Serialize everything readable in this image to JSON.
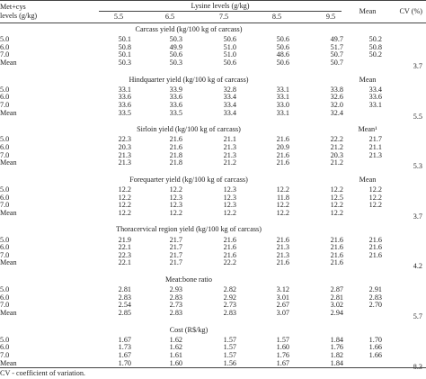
{
  "header": {
    "row_header_line1": "Met+cys",
    "row_header_line2": "levels (g/kg)",
    "lysine_header": "Lysine levels (g/kg)",
    "lysine_levels": [
      "5.5",
      "6.5",
      "7.5",
      "8.5",
      "9.5"
    ],
    "mean_label": "Mean",
    "cv_label": "CV (%)"
  },
  "sections": [
    {
      "title": "Carcass yield (kg/100 kg of carcass)",
      "mean_col_header": "",
      "rows": [
        {
          "label": "5.0",
          "values": [
            "50.1",
            "50.3",
            "50.6",
            "50.6",
            "49.7"
          ],
          "mean": "50.2",
          "cv": ""
        },
        {
          "label": "6.0",
          "values": [
            "50.8",
            "49.9",
            "51.0",
            "50.6",
            "51.7"
          ],
          "mean": "50.8",
          "cv": ""
        },
        {
          "label": "7.0",
          "values": [
            "50.1",
            "50.6",
            "51.0",
            "48.6",
            "50.7"
          ],
          "mean": "50.2",
          "cv": ""
        },
        {
          "label": "Mean",
          "values": [
            "50.3",
            "50.3",
            "50.6",
            "50.6",
            "50.7"
          ],
          "mean": "",
          "cv": "3.7"
        }
      ]
    },
    {
      "title": "Hindquarter yield (kg/100 kg of carcass)",
      "mean_col_header": "Mean",
      "rows": [
        {
          "label": "5.0",
          "values": [
            "33.1",
            "33.9",
            "32.8",
            "33.1",
            "33.8"
          ],
          "mean": "33.4",
          "cv": ""
        },
        {
          "label": "6.0",
          "values": [
            "33.6",
            "33.6",
            "33.4",
            "33.1",
            "32.6"
          ],
          "mean": "33.6",
          "cv": ""
        },
        {
          "label": "7.0",
          "values": [
            "33.6",
            "33.6",
            "33.4",
            "33.0",
            "32.0"
          ],
          "mean": "33.1",
          "cv": ""
        },
        {
          "label": "Mean",
          "values": [
            "33.5",
            "33.5",
            "33.4",
            "33.1",
            "32.4"
          ],
          "mean": "",
          "cv": "5.5"
        }
      ]
    },
    {
      "title": "Sirloin yield (kg/100 kg of carcass)",
      "mean_col_header": "Mean¹",
      "rows": [
        {
          "label": "5.0",
          "values": [
            "22.3",
            "21.6",
            "21.1",
            "21.6",
            "22.2"
          ],
          "mean": "21.7",
          "cv": ""
        },
        {
          "label": "6.0",
          "values": [
            "20.3",
            "21.6",
            "21.3",
            "20.9",
            "21.2"
          ],
          "mean": "21.1",
          "cv": ""
        },
        {
          "label": "7.0",
          "values": [
            "21.3",
            "21.8",
            "21.3",
            "21.6",
            "20.3"
          ],
          "mean": "21.3",
          "cv": ""
        },
        {
          "label": "Mean",
          "values": [
            "21.3",
            "21.8",
            "21.2",
            "21.6",
            "21.2"
          ],
          "mean": "",
          "cv": "5.3"
        }
      ]
    },
    {
      "title": "Forequarter yield (kg/100 kg of carcass)",
      "mean_col_header": "Mean",
      "rows": [
        {
          "label": "5.0",
          "values": [
            "12.2",
            "12.2",
            "12.3",
            "12.2",
            "12.2"
          ],
          "mean": "12.2",
          "cv": ""
        },
        {
          "label": "6.0",
          "values": [
            "12.2",
            "12.3",
            "12.3",
            "11.8",
            "12.5"
          ],
          "mean": "12.2",
          "cv": ""
        },
        {
          "label": "7.0",
          "values": [
            "12.2",
            "12.3",
            "12.3",
            "12.2",
            "12.2"
          ],
          "mean": "12.2",
          "cv": ""
        },
        {
          "label": "Mean",
          "values": [
            "12.2",
            "12.2",
            "12.2",
            "12.2",
            "12.2"
          ],
          "mean": "",
          "cv": "3.7"
        }
      ]
    },
    {
      "title": "Thoracervical region yield (kg/100 kg of carcass)",
      "mean_col_header": "",
      "rows": [
        {
          "label": "5.0",
          "values": [
            "21.9",
            "21.7",
            "21.6",
            "21.6",
            "21.6"
          ],
          "mean": "21.6",
          "cv": ""
        },
        {
          "label": "6.0",
          "values": [
            "22.1",
            "21.7",
            "21.6",
            "21.3",
            "21.6"
          ],
          "mean": "21.6",
          "cv": ""
        },
        {
          "label": "7.0",
          "values": [
            "22.3",
            "21.7",
            "21.6",
            "21.3",
            "21.6"
          ],
          "mean": "21.6",
          "cv": ""
        },
        {
          "label": "Mean",
          "values": [
            "22.1",
            "21.7",
            "22.2",
            "21.6",
            "21.6"
          ],
          "mean": "",
          "cv": "4.2"
        }
      ]
    },
    {
      "title": "Meat:bone ratio",
      "mean_col_header": "",
      "rows": [
        {
          "label": "5.0",
          "values": [
            "2.81",
            "2.93",
            "2.82",
            "3.12",
            "2.87"
          ],
          "mean": "2.91",
          "cv": ""
        },
        {
          "label": "6.0",
          "values": [
            "2.83",
            "2.83",
            "2.92",
            "3.01",
            "2.81"
          ],
          "mean": "2.83",
          "cv": ""
        },
        {
          "label": "7.0",
          "values": [
            "2.54",
            "2.73",
            "2.73",
            "2.67",
            "3.02"
          ],
          "mean": "2.70",
          "cv": ""
        },
        {
          "label": "Mean",
          "values": [
            "2.85",
            "2.83",
            "2.83",
            "3.07",
            "2.94"
          ],
          "mean": "",
          "cv": "5.7"
        }
      ]
    },
    {
      "title": "Cost (R$/kg)",
      "mean_col_header": "",
      "rows": [
        {
          "label": "5.0",
          "values": [
            "1.67",
            "1.62",
            "1.57",
            "1.57",
            "1.84"
          ],
          "mean": "1.70",
          "cv": ""
        },
        {
          "label": "6.0",
          "values": [
            "1.73",
            "1.62",
            "1.57",
            "1.60",
            "1.76"
          ],
          "mean": "1.66",
          "cv": ""
        },
        {
          "label": "7.0",
          "values": [
            "1.67",
            "1.61",
            "1.57",
            "1.76",
            "1.82"
          ],
          "mean": "1.66",
          "cv": ""
        },
        {
          "label": "Mean",
          "values": [
            "1.70",
            "1.60",
            "1.56",
            "1.67",
            "1.84"
          ],
          "mean": "",
          "cv": "8.3"
        }
      ]
    }
  ],
  "footnote": "CV - coefficient of variation."
}
